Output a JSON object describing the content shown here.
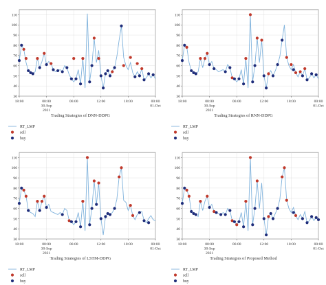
{
  "colors": {
    "line": "#7fb2dc",
    "sell": "#c0392b",
    "buy": "#1f2d7a",
    "grid": "#d9d9d9"
  },
  "chart_data": [
    {
      "type": "line",
      "title": "",
      "caption": "Trading Strategies of DNN-DDPG",
      "xlabel": "",
      "ylabel": "",
      "ylim": [
        30,
        115
      ],
      "yticks": [
        30,
        40,
        50,
        60,
        70,
        80,
        90,
        100,
        110
      ],
      "xticks": [
        {
          "x": 0,
          "label": "18:00"
        },
        {
          "x": 6,
          "label": "00:00\n30-Sep\n2021"
        },
        {
          "x": 12,
          "label": "06:00"
        },
        {
          "x": 18,
          "label": "12:00"
        },
        {
          "x": 24,
          "label": "18:00"
        },
        {
          "x": 30,
          "label": "00:00\n01-Oct"
        }
      ],
      "grid": true,
      "legend_position": "below",
      "series": [
        {
          "name": "RT_LMP",
          "kind": "line",
          "x": [
            0,
            0.5,
            1,
            1.5,
            2,
            2.5,
            3,
            3.5,
            4,
            4.5,
            5,
            5.5,
            6,
            6.5,
            7,
            7.5,
            8,
            8.5,
            9,
            9.5,
            10,
            10.5,
            11,
            11.5,
            12,
            12.5,
            13,
            13.5,
            14,
            14.5,
            15,
            15.5,
            16,
            16.5,
            17,
            17.5,
            18,
            18.5,
            19,
            19.5,
            20,
            20.5,
            21,
            21.5,
            22,
            22.5,
            23,
            23.5,
            24,
            24.5,
            25,
            25.5,
            26,
            26.5,
            27,
            27.5,
            28,
            28.5,
            29,
            29.5,
            30
          ],
          "y": [
            65,
            80,
            76,
            63,
            55,
            53,
            52,
            54,
            67,
            58,
            64,
            72,
            61,
            64,
            62,
            56,
            54,
            55,
            56,
            54,
            60,
            58,
            51,
            47,
            44,
            47,
            56,
            42,
            67,
            38,
            111,
            44,
            60,
            87,
            63,
            75,
            50,
            38,
            52,
            55,
            50,
            55,
            58,
            69,
            85,
            99,
            68,
            60,
            56,
            63,
            53,
            49,
            54,
            50,
            57,
            46,
            48,
            52,
            48,
            51,
            47
          ]
        },
        {
          "name": "sell",
          "kind": "points",
          "x": [
            1,
            1.5,
            4,
            5.5,
            7,
            12,
            14,
            16.5,
            17.5,
            20.5,
            23,
            24.5,
            26,
            27
          ],
          "y": [
            76,
            67,
            67,
            72,
            62,
            67,
            67,
            87,
            67,
            54,
            60,
            68,
            62,
            57
          ]
        },
        {
          "name": "buy",
          "kind": "points",
          "x": [
            0,
            0.5,
            2,
            2.5,
            3,
            4.5,
            6,
            7.5,
            8.5,
            9.5,
            10.5,
            11.5,
            12.5,
            13.5,
            15.5,
            16,
            18,
            18.5,
            19,
            19.5,
            20,
            21,
            22.5,
            25.5,
            26.5,
            27.5,
            28.5,
            29.5
          ],
          "y": [
            65,
            80,
            55,
            53,
            52,
            58,
            61,
            56,
            55,
            54,
            58,
            47,
            47,
            42,
            44,
            60,
            50,
            38,
            52,
            55,
            50,
            58,
            99,
            49,
            50,
            46,
            52,
            51
          ]
        }
      ]
    },
    {
      "type": "line",
      "title": "",
      "caption": "Trading Strategies of RNN-DDPG",
      "xlabel": "",
      "ylabel": "",
      "ylim": [
        30,
        115
      ],
      "yticks": [
        30,
        40,
        50,
        60,
        70,
        80,
        90,
        100,
        110
      ],
      "xticks": [
        {
          "x": 0,
          "label": "18:00"
        },
        {
          "x": 6,
          "label": "00:00\n30-Sep\n2021"
        },
        {
          "x": 12,
          "label": "06:00"
        },
        {
          "x": 18,
          "label": "12:00"
        },
        {
          "x": 24,
          "label": "18:00"
        },
        {
          "x": 30,
          "label": "00:00\n01-Oct"
        }
      ],
      "grid": true,
      "legend_position": "below",
      "series": [
        {
          "name": "RT_LMP",
          "kind": "line",
          "x": [
            0,
            0.5,
            1,
            1.5,
            2,
            2.5,
            3,
            3.5,
            4,
            4.5,
            5,
            5.5,
            6,
            6.5,
            7,
            7.5,
            8,
            8.5,
            9,
            9.5,
            10,
            10.5,
            11,
            11.5,
            12,
            12.5,
            13,
            13.5,
            14,
            14.5,
            15,
            15.5,
            16,
            16.5,
            17,
            17.5,
            18,
            18.5,
            19,
            19.5,
            20,
            20.5,
            21,
            21.5,
            22,
            22.5,
            23,
            23.5,
            24,
            24.5,
            25,
            25.5,
            26,
            26.5,
            27,
            27.5,
            28,
            28.5,
            29,
            29.5,
            30
          ],
          "y": [
            65,
            80,
            78,
            63,
            55,
            53,
            52,
            54,
            67,
            58,
            67,
            72,
            61,
            64,
            57,
            56,
            54,
            55,
            56,
            54,
            61,
            58,
            48,
            47,
            44,
            47,
            56,
            42,
            67,
            38,
            110,
            44,
            60,
            87,
            63,
            85,
            50,
            38,
            52,
            55,
            50,
            55,
            61,
            69,
            85,
            100,
            68,
            60,
            56,
            61,
            53,
            49,
            54,
            50,
            57,
            46,
            48,
            52,
            48,
            51,
            47
          ]
        },
        {
          "name": "sell",
          "kind": "points",
          "x": [
            1,
            4,
            5,
            5.5,
            11,
            14,
            15,
            16.5,
            17.5,
            19,
            23,
            24,
            25,
            26,
            27
          ],
          "y": [
            78,
            67,
            67,
            72,
            48,
            67,
            110,
            87,
            85,
            52,
            68,
            61,
            53,
            54,
            57
          ]
        },
        {
          "name": "buy",
          "kind": "points",
          "x": [
            0,
            0.5,
            2,
            2.5,
            3,
            6,
            7,
            9.5,
            10.5,
            11.5,
            12.5,
            13.5,
            15.5,
            16,
            18,
            18.5,
            20,
            21,
            22,
            24.5,
            26.5,
            27.5,
            28.5,
            29.5
          ],
          "y": [
            65,
            80,
            55,
            53,
            52,
            61,
            57,
            54,
            58,
            47,
            47,
            42,
            44,
            60,
            50,
            38,
            50,
            61,
            85,
            56,
            50,
            46,
            52,
            51
          ]
        }
      ]
    },
    {
      "type": "line",
      "title": "",
      "caption": "Trading Strategies of LSTM-DDPG",
      "xlabel": "",
      "ylabel": "",
      "ylim": [
        30,
        115
      ],
      "yticks": [
        30,
        40,
        50,
        60,
        70,
        80,
        90,
        100,
        110
      ],
      "xticks": [
        {
          "x": 0,
          "label": "18:00"
        },
        {
          "x": 6,
          "label": "00:00\n30-Sep\n2021"
        },
        {
          "x": 12,
          "label": "06:00"
        },
        {
          "x": 18,
          "label": "12:00"
        },
        {
          "x": 24,
          "label": "18:00"
        },
        {
          "x": 30,
          "label": "00:00\n01-Oct"
        }
      ],
      "grid": true,
      "legend_position": "below",
      "series": [
        {
          "name": "RT_LMP",
          "kind": "line",
          "x": [
            0,
            0.5,
            1,
            1.5,
            2,
            2.5,
            3,
            3.5,
            4,
            4.5,
            5,
            5.5,
            6,
            6.5,
            7,
            7.5,
            8,
            8.5,
            9,
            9.5,
            10,
            10.5,
            11,
            11.5,
            12,
            12.5,
            13,
            13.5,
            14,
            14.5,
            15,
            15.5,
            16,
            16.5,
            17,
            17.5,
            18,
            18.5,
            19,
            19.5,
            20,
            20.5,
            21,
            21.5,
            22,
            22.5,
            23,
            23.5,
            24,
            24.5,
            25,
            25.5,
            26,
            26.5,
            27,
            27.5,
            28,
            28.5,
            29,
            29.5,
            30
          ],
          "y": [
            65,
            80,
            78,
            72,
            58,
            56,
            55,
            52,
            67,
            58,
            67,
            72,
            61,
            64,
            57,
            56,
            55,
            54,
            56,
            54,
            60,
            58,
            48,
            47,
            44,
            47,
            56,
            42,
            67,
            38,
            110,
            44,
            60,
            87,
            64,
            85,
            50,
            34,
            52,
            55,
            54,
            56,
            60,
            69,
            91,
            100,
            68,
            66,
            58,
            63,
            53,
            49,
            54,
            56,
            57,
            48,
            46,
            50,
            53,
            49,
            48
          ]
        },
        {
          "name": "sell",
          "kind": "points",
          "x": [
            1,
            1.5,
            4,
            5,
            5.5,
            11,
            14,
            15,
            16.5,
            17.5,
            22,
            22.5,
            24.5,
            25
          ],
          "y": [
            78,
            72,
            67,
            67,
            72,
            48,
            67,
            110,
            87,
            85,
            91,
            100,
            63,
            53
          ]
        },
        {
          "name": "buy",
          "kind": "points",
          "x": [
            0,
            0.5,
            2,
            4.5,
            6,
            9.5,
            11.5,
            12.5,
            13.5,
            15.5,
            16,
            17,
            18,
            19,
            19.5,
            20,
            21,
            26.5,
            27.5,
            28.5
          ],
          "y": [
            65,
            80,
            58,
            58,
            61,
            54,
            47,
            47,
            42,
            44,
            60,
            64,
            50,
            52,
            55,
            54,
            60,
            56,
            48,
            46
          ]
        }
      ]
    },
    {
      "type": "line",
      "title": "",
      "caption": "Trading Strategies of Proposed Method",
      "xlabel": "",
      "ylabel": "",
      "ylim": [
        30,
        115
      ],
      "yticks": [
        30,
        40,
        50,
        60,
        70,
        80,
        90,
        100,
        110
      ],
      "xticks": [
        {
          "x": 0,
          "label": "18:00"
        },
        {
          "x": 6,
          "label": "00:00\n30-Sep\n2021"
        },
        {
          "x": 12,
          "label": "06:00"
        },
        {
          "x": 18,
          "label": "12:00"
        },
        {
          "x": 24,
          "label": "18:00"
        },
        {
          "x": 30,
          "label": "00:00\n01-Oct"
        }
      ],
      "grid": true,
      "legend_position": "below",
      "series": [
        {
          "name": "RT_LMP",
          "kind": "line",
          "x": [
            0,
            0.5,
            1,
            1.5,
            2,
            2.5,
            3,
            3.5,
            4,
            4.5,
            5,
            5.5,
            6,
            6.5,
            7,
            7.5,
            8,
            8.5,
            9,
            9.5,
            10,
            10.5,
            11,
            11.5,
            12,
            12.5,
            13,
            13.5,
            14,
            14.5,
            15,
            15.5,
            16,
            16.5,
            17,
            17.5,
            18,
            18.5,
            19,
            19.5,
            20,
            20.5,
            21,
            21.5,
            22,
            22.5,
            23,
            23.5,
            24,
            24.5,
            25,
            25.5,
            26,
            26.5,
            27,
            27.5,
            28,
            28.5,
            29,
            29.5,
            30
          ],
          "y": [
            65,
            80,
            78,
            72,
            57,
            55,
            54,
            52,
            67,
            58,
            67,
            72,
            61,
            64,
            57,
            56,
            55,
            54,
            56,
            54,
            60,
            58,
            48,
            47,
            44,
            47,
            56,
            42,
            67,
            38,
            110,
            44,
            60,
            87,
            60,
            85,
            50,
            34,
            52,
            55,
            50,
            55,
            60,
            69,
            91,
            100,
            68,
            60,
            56,
            61,
            53,
            49,
            54,
            50,
            57,
            46,
            48,
            52,
            48,
            51,
            49
          ]
        },
        {
          "name": "sell",
          "kind": "points",
          "x": [
            1,
            1.5,
            4,
            5.5,
            7,
            11,
            12,
            14,
            15,
            16.5,
            19,
            22,
            22.5,
            23,
            25
          ],
          "y": [
            78,
            72,
            67,
            72,
            57,
            48,
            44,
            67,
            110,
            87,
            52,
            91,
            100,
            68,
            53
          ]
        },
        {
          "name": "buy",
          "kind": "points",
          "x": [
            0,
            0.5,
            2,
            2.5,
            3,
            6,
            7.5,
            8.5,
            9.5,
            10.5,
            11.5,
            12.5,
            13.5,
            15.5,
            16,
            18,
            18.5,
            19.5,
            20,
            21,
            24.5,
            26.5,
            27.5,
            28.5,
            29.5,
            30
          ],
          "y": [
            65,
            80,
            57,
            55,
            54,
            61,
            56,
            54,
            54,
            58,
            47,
            47,
            42,
            44,
            60,
            50,
            34,
            55,
            50,
            60,
            56,
            50,
            46,
            52,
            51,
            49
          ]
        }
      ]
    }
  ]
}
